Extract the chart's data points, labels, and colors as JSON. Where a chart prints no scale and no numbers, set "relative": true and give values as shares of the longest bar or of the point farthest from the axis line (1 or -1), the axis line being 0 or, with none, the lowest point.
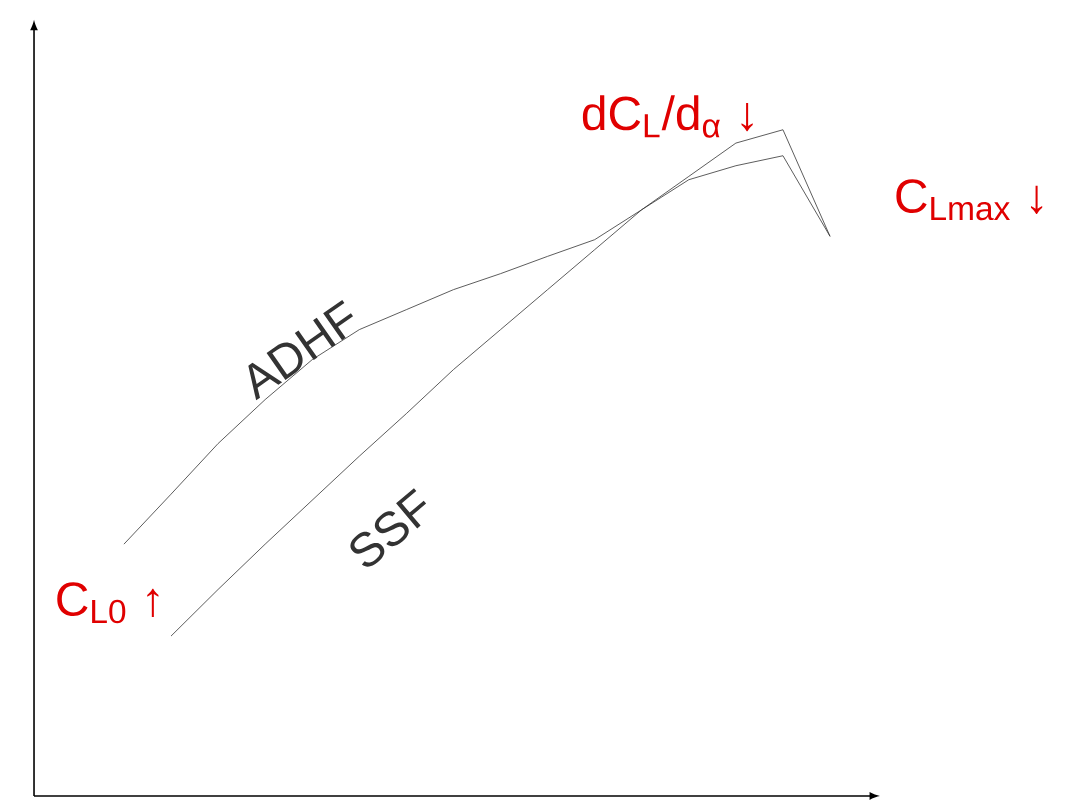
{
  "chart_data": {
    "type": "line",
    "relative": true,
    "categories": [
      null,
      null,
      null,
      null,
      null,
      null,
      null,
      null,
      null,
      null,
      null,
      null,
      null,
      null,
      null,
      null
    ],
    "series": [
      {
        "name": "ADHF",
        "color": "#333333",
        "values": [
          0.378,
          0.453,
          0.529,
          0.595,
          0.655,
          0.7,
          0.73,
          0.76,
          0.784,
          0.81,
          0.835,
          0.88,
          0.925,
          0.946,
          0.961,
          0.84
        ]
      },
      {
        "name": "SSF",
        "color": "#333333",
        "values": [
          null,
          0.24,
          0.31,
          0.378,
          0.444,
          0.51,
          0.574,
          0.64,
          0.7,
          0.76,
          0.82,
          0.88,
          0.93,
          0.98,
          1.0,
          0.84
        ]
      }
    ],
    "annotations": [
      "dC$_{L}$/d$_{α}$ ↓",
      "C$_{L0}$ ↑",
      "C$_{Lmax}$ ↓"
    ],
    "marker": "none",
    "line_style": "solid"
  }
}
